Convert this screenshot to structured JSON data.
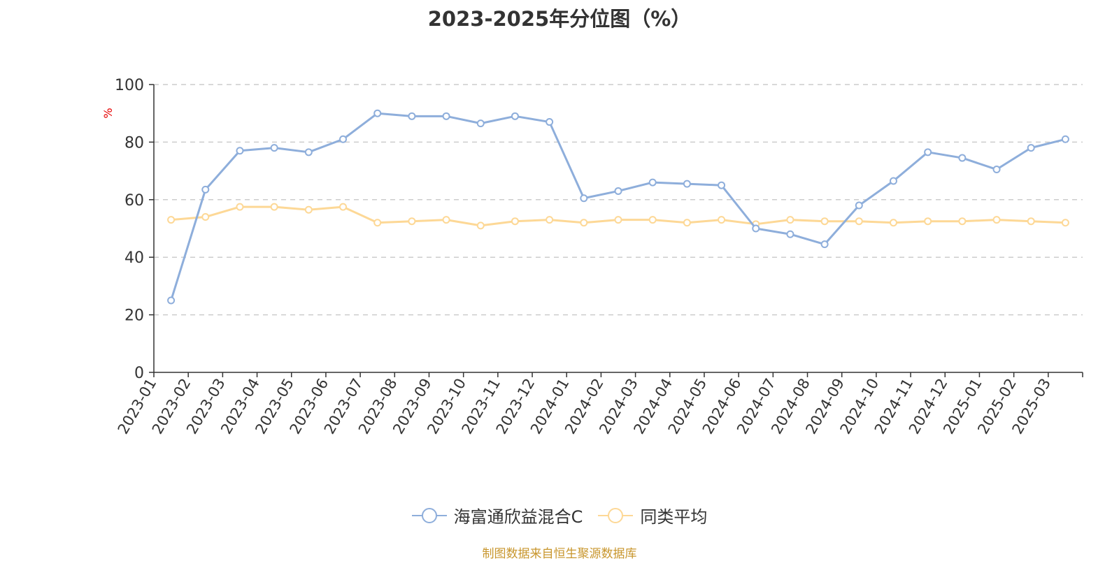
{
  "chart_data": {
    "type": "line",
    "title": "2023-2025年分位图（%）",
    "ylabel": "%",
    "ylim": [
      0,
      100
    ],
    "y_ticks": [
      "0",
      "20",
      "40",
      "60",
      "80",
      "100"
    ],
    "grid": "horizontal-dashed",
    "legend_position": "bottom-center",
    "categories": [
      "2023-01",
      "2023-02",
      "2023-03",
      "2023-04",
      "2023-05",
      "2023-06",
      "2023-07",
      "2023-08",
      "2023-09",
      "2023-10",
      "2023-11",
      "2023-12",
      "2024-01",
      "2024-02",
      "2024-03",
      "2024-04",
      "2024-05",
      "2024-06",
      "2024-07",
      "2024-08",
      "2024-09",
      "2024-10",
      "2024-11",
      "2024-12",
      "2025-01",
      "2025-02",
      "2025-03"
    ],
    "series": [
      {
        "name": "海富通欣益混合C",
        "color": "#8eaedb",
        "values": [
          25,
          63.5,
          77,
          78,
          76.5,
          81,
          90,
          89,
          89,
          86.5,
          89,
          87,
          60.5,
          63,
          66,
          65.5,
          65,
          50,
          48,
          44.5,
          58,
          66.5,
          76.5,
          74.5,
          70.5,
          78,
          81
        ]
      },
      {
        "name": "同类平均",
        "color": "#fdd896",
        "values": [
          53,
          54,
          57.5,
          57.5,
          56.5,
          57.5,
          52,
          52.5,
          53,
          51,
          52.5,
          53,
          52,
          53,
          53,
          52,
          53,
          51.5,
          53,
          52.5,
          52.5,
          52,
          52.5,
          52.5,
          53,
          52.5,
          52
        ]
      }
    ]
  },
  "footer": {
    "source": "制图数据来自恒生聚源数据库"
  }
}
